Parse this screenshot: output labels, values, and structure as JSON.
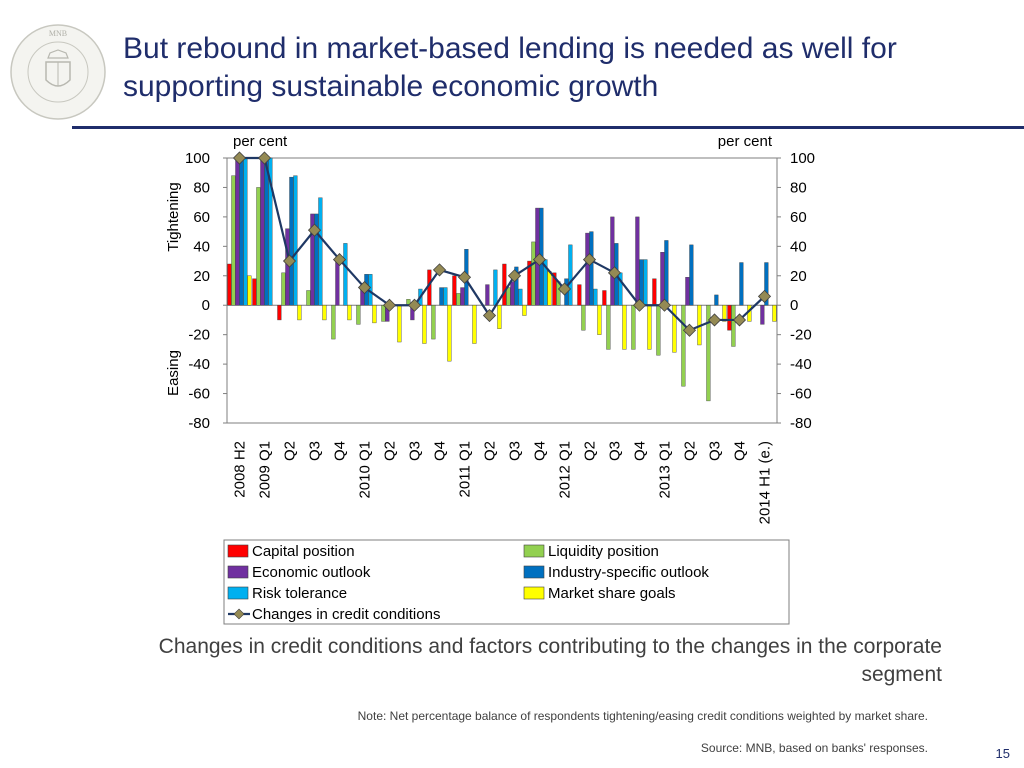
{
  "slide": {
    "title": "But rebound in market-based lending is needed as well for supporting sustainable economic growth",
    "caption": "Changes in credit conditions and factors contributing to the changes in the corporate segment",
    "note": "Note: Net percentage balance of respondents tightening/easing credit conditions weighted by market share.",
    "source": "Source:  MNB, based on banks' responses.",
    "page_number": "15",
    "logo_text": "MAGYAR NEMZETI BANK"
  },
  "colors": {
    "title": "#1f2d6b",
    "capital": "#ff0000",
    "liquidity": "#92d050",
    "economic": "#7030a0",
    "industry": "#0070c0",
    "risk": "#00b0f0",
    "market": "#ffff00",
    "line": "#1f3864",
    "marker": "#948a54"
  },
  "chart_data": {
    "type": "bar",
    "left_unit": "per cent",
    "right_unit": "per cent",
    "ylabel_top": "Tightening",
    "ylabel_bottom": "Easing",
    "ylim": [
      -80,
      100
    ],
    "yticks": [
      -80,
      -60,
      -40,
      -20,
      0,
      20,
      40,
      60,
      80,
      100
    ],
    "categories": [
      "2008 H2",
      "2009 Q1",
      "Q2",
      "Q3",
      "Q4",
      "2010 Q1",
      "Q2",
      "Q3",
      "Q4",
      "2011 Q1",
      "Q2",
      "Q3",
      "Q4",
      "2012 Q1",
      "Q2",
      "Q3",
      "Q4",
      "2013 Q1",
      "Q2",
      "Q3",
      "Q4",
      "2014 H1 (e.)"
    ],
    "series": [
      {
        "name": "Capital position",
        "color_key": "capital",
        "values": [
          28,
          18,
          -10,
          0,
          0,
          0,
          0,
          0,
          24,
          20,
          0,
          28,
          30,
          22,
          14,
          10,
          0,
          18,
          0,
          0,
          -17,
          0
        ]
      },
      {
        "name": "Liquidity position",
        "color_key": "liquidity",
        "values": [
          88,
          80,
          22,
          10,
          -23,
          -13,
          -11,
          4,
          -23,
          8,
          0,
          12,
          43,
          16,
          -17,
          -30,
          -30,
          -34,
          -55,
          -65,
          -28,
          0
        ]
      },
      {
        "name": "Economic outlook",
        "color_key": "economic",
        "values": [
          100,
          100,
          52,
          62,
          32,
          11,
          -11,
          -10,
          0,
          12,
          14,
          16,
          66,
          0,
          49,
          60,
          60,
          36,
          19,
          0,
          0,
          -13
        ]
      },
      {
        "name": "Industry-specific outlook",
        "color_key": "industry",
        "values": [
          100,
          100,
          87,
          62,
          0,
          21,
          0,
          0,
          12,
          38,
          0,
          26,
          66,
          18,
          50,
          42,
          31,
          44,
          41,
          7,
          29,
          29
        ]
      },
      {
        "name": "Risk tolerance",
        "color_key": "risk",
        "values": [
          100,
          100,
          88,
          73,
          42,
          21,
          0,
          11,
          12,
          0,
          24,
          11,
          31,
          41,
          11,
          22,
          31,
          0,
          0,
          0,
          0,
          0
        ]
      },
      {
        "name": "Market share goals",
        "color_key": "market",
        "values": [
          20,
          0,
          -10,
          -10,
          -10,
          -12,
          -25,
          -26,
          -38,
          -26,
          -16,
          -7,
          23,
          0,
          -20,
          -30,
          -30,
          -32,
          -27,
          -11,
          -11,
          -11
        ]
      }
    ],
    "line": {
      "name": "Changes in credit conditions",
      "color_key": "line",
      "values": [
        100,
        100,
        30,
        51,
        31,
        12,
        0,
        0,
        24,
        19,
        -7,
        20,
        31,
        11,
        31,
        22,
        0,
        0,
        -17,
        -10,
        -10,
        6
      ]
    },
    "legend": {
      "placement": "bottom",
      "items": [
        {
          "label": "Capital position",
          "color_key": "capital",
          "kind": "box"
        },
        {
          "label": "Liquidity position",
          "color_key": "liquidity",
          "kind": "box"
        },
        {
          "label": "Economic outlook",
          "color_key": "economic",
          "kind": "box"
        },
        {
          "label": "Industry-specific outlook",
          "color_key": "industry",
          "kind": "box"
        },
        {
          "label": "Risk tolerance",
          "color_key": "risk",
          "kind": "box"
        },
        {
          "label": "Market share goals",
          "color_key": "market",
          "kind": "box"
        },
        {
          "label": "Changes in credit conditions",
          "color_key": "line",
          "kind": "line"
        }
      ]
    }
  }
}
